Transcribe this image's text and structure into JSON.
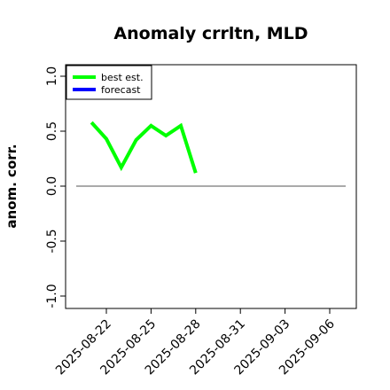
{
  "chart_data": {
    "type": "line",
    "title": "Anomaly crrltn, MLD",
    "xlabel": "",
    "ylabel": "anom. corr.",
    "ylim": [
      -1.0,
      1.0
    ],
    "yticks": [
      "-1.0",
      "-0.5",
      "0.0",
      "0.5",
      "1.0"
    ],
    "ytick_values": [
      -1.0,
      -0.5,
      0.0,
      0.5,
      1.0
    ],
    "xticks": [
      "2025-08-22",
      "2025-08-25",
      "2025-08-28",
      "2025-08-31",
      "2025-09-03",
      "2025-09-06"
    ],
    "highlight_xtick": "2025-08-28",
    "highlight_color": "#228B22",
    "reference_line": 0.0,
    "grid": false,
    "legend_position": "top-left",
    "series": [
      {
        "name": "best est.",
        "color": "#00ff00",
        "x": [
          "2025-08-21",
          "2025-08-22",
          "2025-08-23",
          "2025-08-24",
          "2025-08-25",
          "2025-08-26",
          "2025-08-27",
          "2025-08-28"
        ],
        "values": [
          0.58,
          0.43,
          0.17,
          0.42,
          0.55,
          0.46,
          0.55,
          0.12
        ]
      },
      {
        "name": "forecast",
        "color": "#0000ff",
        "x": [],
        "values": []
      }
    ]
  }
}
